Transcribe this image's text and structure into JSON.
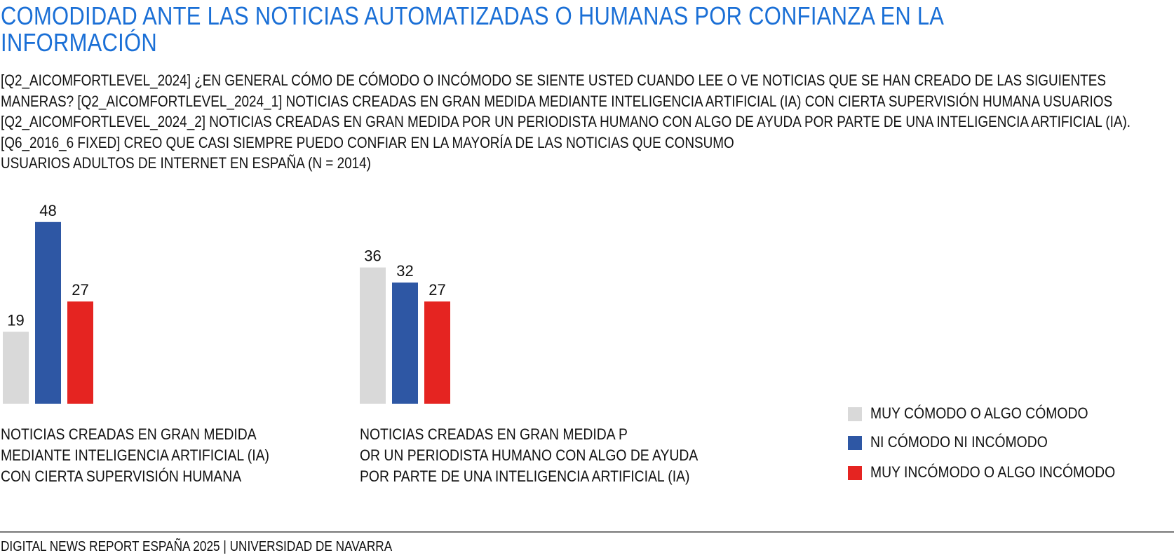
{
  "title_line1": "COMODIDAD ANTE LAS NOTICIAS AUTOMATIZADAS O HUMANAS POR CONFIANZA EN LA",
  "title_line2": "INFORMACIÓN",
  "subtitle_lines": [
    "[Q2_AICOMFORTLEVEL_2024] ¿EN GENERAL CÓMO DE CÓMODO O INCÓMODO SE SIENTE USTED CUANDO LEE O VE NOTICIAS QUE SE HAN CREADO DE LAS SIGUIENTES",
    "MANERAS? [Q2_AICOMFORTLEVEL_2024_1] NOTICIAS CREADAS EN GRAN MEDIDA MEDIANTE INTELIGENCIA ARTIFICIAL (IA) CON CIERTA SUPERVISIÓN HUMANA USUARIOS",
    "[Q2_AICOMFORTLEVEL_2024_2] NOTICIAS CREADAS EN GRAN MEDIDA POR UN PERIODISTA HUMANO CON ALGO DE AYUDA POR PARTE DE UNA INTELIGENCIA ARTIFICIAL (IA).",
    "[Q6_2016_6 FIXED]  CREO QUE CASI SIEMPRE PUEDO CONFIAR EN LA MAYORÍA DE LAS NOTICIAS QUE CONSUMO",
    "USUARIOS ADULTOS DE INTERNET EN ESPAÑA (N = 2014)"
  ],
  "chart_data": {
    "type": "bar",
    "categories": [
      [
        "NOTICIAS CREADAS EN GRAN MEDIDA",
        "MEDIANTE INTELIGENCIA ARTIFICIAL (IA)",
        "CON CIERTA SUPERVISIÓN HUMANA"
      ],
      [
        "NOTICIAS CREADAS EN GRAN MEDIDA P",
        "OR UN PERIODISTA HUMANO CON ALGO DE AYUDA",
        "POR PARTE DE UNA INTELIGENCIA ARTIFICIAL (IA)"
      ]
    ],
    "series": [
      {
        "name": "MUY CÓMODO O ALGO CÓMODO",
        "color": "#d9d9d9",
        "values": [
          19,
          36
        ]
      },
      {
        "name": "NI CÓMODO NI INCÓMODO",
        "color": "#2e57a4",
        "values": [
          48,
          32
        ]
      },
      {
        "name": "MUY INCÓMODO O ALGO INCÓMODO",
        "color": "#e52421",
        "values": [
          27,
          27
        ]
      }
    ],
    "legend_position": "right",
    "grid": false,
    "ylim": [
      0,
      48
    ]
  },
  "footer": "DIGITAL NEWS REPORT ESPAÑA 2025 | UNIVERSIDAD DE NAVARRA"
}
